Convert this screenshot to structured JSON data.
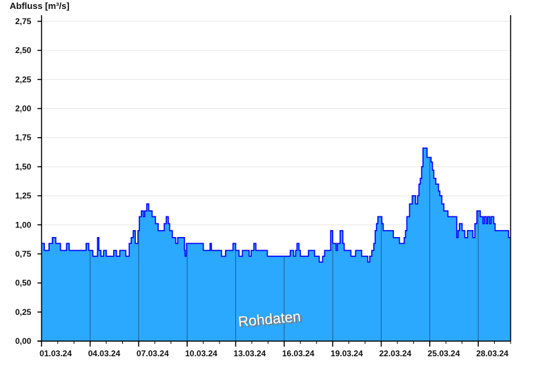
{
  "chart_data": {
    "type": "area",
    "ylabel": "Abfluss [m³/s]",
    "xlabel": "",
    "ylim": [
      0,
      2.75
    ],
    "xlim": [
      "2024-03-01T00:00",
      "2024-03-30T00:00"
    ],
    "yticks": [
      "0,00",
      "0,25",
      "0,50",
      "0,75",
      "1,00",
      "1,25",
      "1,50",
      "1,75",
      "2,00",
      "2,25",
      "2,50",
      "2,75"
    ],
    "xticks": [
      {
        "date": "2024-03-01",
        "label": "01.03.24"
      },
      {
        "date": "2024-03-04",
        "label": "04.03.24"
      },
      {
        "date": "2024-03-07",
        "label": "07.03.24"
      },
      {
        "date": "2024-03-10",
        "label": "10.03.24"
      },
      {
        "date": "2024-03-13",
        "label": "13.03.24"
      },
      {
        "date": "2024-03-16",
        "label": "16.03.24"
      },
      {
        "date": "2024-03-19",
        "label": "19.03.24"
      },
      {
        "date": "2024-03-22",
        "label": "22.03.24"
      },
      {
        "date": "2024-03-25",
        "label": "25.03.24"
      },
      {
        "date": "2024-03-28",
        "label": "28.03.24"
      }
    ],
    "grid": true,
    "watermark": "Rohdaten",
    "colors": {
      "fill": "#2ba8ff",
      "line": "#0000ff",
      "grid": "#e6e6e6",
      "day_lines": "#1f5c8a"
    },
    "series": [
      {
        "step": true,
        "points": [
          [
            "2024-03-01T00:00",
            0.84
          ],
          [
            "2024-03-01T04:00",
            0.78
          ],
          [
            "2024-03-01T11:00",
            0.84
          ],
          [
            "2024-03-01T16:00",
            0.89
          ],
          [
            "2024-03-01T21:00",
            0.84
          ],
          [
            "2024-03-02T04:00",
            0.78
          ],
          [
            "2024-03-02T13:00",
            0.84
          ],
          [
            "2024-03-02T17:00",
            0.78
          ],
          [
            "2024-03-03T18:00",
            0.84
          ],
          [
            "2024-03-03T22:00",
            0.78
          ],
          [
            "2024-03-04T04:00",
            0.73
          ],
          [
            "2024-03-04T11:00",
            0.89
          ],
          [
            "2024-03-04T13:00",
            0.78
          ],
          [
            "2024-03-04T16:00",
            0.73
          ],
          [
            "2024-03-04T20:00",
            0.78
          ],
          [
            "2024-03-05T00:00",
            0.73
          ],
          [
            "2024-03-05T11:00",
            0.78
          ],
          [
            "2024-03-05T15:00",
            0.73
          ],
          [
            "2024-03-05T20:00",
            0.78
          ],
          [
            "2024-03-06T05:00",
            0.73
          ],
          [
            "2024-03-06T10:00",
            0.84
          ],
          [
            "2024-03-06T13:00",
            0.89
          ],
          [
            "2024-03-06T16:00",
            0.95
          ],
          [
            "2024-03-06T19:00",
            0.84
          ],
          [
            "2024-03-06T23:00",
            0.95
          ],
          [
            "2024-03-07T01:00",
            1.07
          ],
          [
            "2024-03-07T04:00",
            1.12
          ],
          [
            "2024-03-07T07:00",
            1.07
          ],
          [
            "2024-03-07T09:00",
            1.12
          ],
          [
            "2024-03-07T12:00",
            1.18
          ],
          [
            "2024-03-07T15:00",
            1.12
          ],
          [
            "2024-03-07T20:00",
            1.07
          ],
          [
            "2024-03-08T01:00",
            1.01
          ],
          [
            "2024-03-08T05:00",
            0.95
          ],
          [
            "2024-03-08T14:00",
            1.01
          ],
          [
            "2024-03-08T17:00",
            1.07
          ],
          [
            "2024-03-08T20:00",
            1.01
          ],
          [
            "2024-03-08T22:00",
            0.95
          ],
          [
            "2024-03-09T02:00",
            0.89
          ],
          [
            "2024-03-09T07:00",
            0.84
          ],
          [
            "2024-03-09T10:00",
            0.89
          ],
          [
            "2024-03-09T20:00",
            0.78
          ],
          [
            "2024-03-09T21:00",
            0.73
          ],
          [
            "2024-03-09T23:00",
            0.84
          ],
          [
            "2024-03-11T00:00",
            0.78
          ],
          [
            "2024-03-11T10:00",
            0.84
          ],
          [
            "2024-03-11T12:00",
            0.78
          ],
          [
            "2024-03-12T03:00",
            0.73
          ],
          [
            "2024-03-12T09:00",
            0.78
          ],
          [
            "2024-03-12T20:00",
            0.84
          ],
          [
            "2024-03-13T00:00",
            0.78
          ],
          [
            "2024-03-13T05:00",
            0.73
          ],
          [
            "2024-03-13T10:00",
            0.78
          ],
          [
            "2024-03-13T20:00",
            0.73
          ],
          [
            "2024-03-13T23:00",
            0.78
          ],
          [
            "2024-03-14T03:00",
            0.84
          ],
          [
            "2024-03-14T06:00",
            0.78
          ],
          [
            "2024-03-14T23:00",
            0.73
          ],
          [
            "2024-03-16T09:00",
            0.78
          ],
          [
            "2024-03-16T14:00",
            0.73
          ],
          [
            "2024-03-16T17:00",
            0.78
          ],
          [
            "2024-03-16T19:00",
            0.84
          ],
          [
            "2024-03-16T22:00",
            0.78
          ],
          [
            "2024-03-17T00:00",
            0.73
          ],
          [
            "2024-03-17T12:00",
            0.78
          ],
          [
            "2024-03-17T21:00",
            0.73
          ],
          [
            "2024-03-18T04:00",
            0.68
          ],
          [
            "2024-03-18T09:00",
            0.73
          ],
          [
            "2024-03-18T12:00",
            0.78
          ],
          [
            "2024-03-18T21:00",
            0.95
          ],
          [
            "2024-03-19T00:00",
            0.84
          ],
          [
            "2024-03-19T05:00",
            0.78
          ],
          [
            "2024-03-19T07:00",
            0.84
          ],
          [
            "2024-03-19T11:00",
            0.95
          ],
          [
            "2024-03-19T15:00",
            0.84
          ],
          [
            "2024-03-19T17:00",
            0.78
          ],
          [
            "2024-03-20T03:00",
            0.73
          ],
          [
            "2024-03-20T10:00",
            0.78
          ],
          [
            "2024-03-20T19:00",
            0.73
          ],
          [
            "2024-03-21T04:00",
            0.68
          ],
          [
            "2024-03-21T07:00",
            0.73
          ],
          [
            "2024-03-21T10:00",
            0.78
          ],
          [
            "2024-03-21T13:00",
            0.84
          ],
          [
            "2024-03-21T15:00",
            0.95
          ],
          [
            "2024-03-21T17:00",
            1.01
          ],
          [
            "2024-03-21T19:00",
            1.07
          ],
          [
            "2024-03-22T01:00",
            1.01
          ],
          [
            "2024-03-22T03:00",
            0.95
          ],
          [
            "2024-03-22T18:00",
            0.89
          ],
          [
            "2024-03-23T03:00",
            0.84
          ],
          [
            "2024-03-23T10:00",
            0.89
          ],
          [
            "2024-03-23T12:00",
            0.95
          ],
          [
            "2024-03-23T14:00",
            1.07
          ],
          [
            "2024-03-23T18:00",
            1.18
          ],
          [
            "2024-03-23T22:00",
            1.25
          ],
          [
            "2024-03-24T03:00",
            1.18
          ],
          [
            "2024-03-24T06:00",
            1.25
          ],
          [
            "2024-03-24T08:00",
            1.35
          ],
          [
            "2024-03-24T10:00",
            1.4
          ],
          [
            "2024-03-24T12:00",
            1.5
          ],
          [
            "2024-03-24T14:00",
            1.66
          ],
          [
            "2024-03-24T20:00",
            1.58
          ],
          [
            "2024-03-25T02:00",
            1.54
          ],
          [
            "2024-03-25T04:00",
            1.47
          ],
          [
            "2024-03-25T06:00",
            1.4
          ],
          [
            "2024-03-25T09:00",
            1.35
          ],
          [
            "2024-03-25T13:00",
            1.29
          ],
          [
            "2024-03-25T15:00",
            1.25
          ],
          [
            "2024-03-25T18:00",
            1.18
          ],
          [
            "2024-03-25T21:00",
            1.12
          ],
          [
            "2024-03-26T03:00",
            1.07
          ],
          [
            "2024-03-26T16:00",
            0.89
          ],
          [
            "2024-03-26T18:00",
            0.95
          ],
          [
            "2024-03-26T20:00",
            1.01
          ],
          [
            "2024-03-27T00:00",
            0.95
          ],
          [
            "2024-03-27T04:00",
            0.89
          ],
          [
            "2024-03-27T08:00",
            0.95
          ],
          [
            "2024-03-27T16:00",
            0.89
          ],
          [
            "2024-03-27T19:00",
            1.01
          ],
          [
            "2024-03-27T22:00",
            1.12
          ],
          [
            "2024-03-28T03:00",
            1.07
          ],
          [
            "2024-03-28T07:00",
            1.01
          ],
          [
            "2024-03-28T09:00",
            1.07
          ],
          [
            "2024-03-28T12:00",
            1.01
          ],
          [
            "2024-03-28T14:00",
            1.07
          ],
          [
            "2024-03-28T17:00",
            1.01
          ],
          [
            "2024-03-28T19:00",
            1.07
          ],
          [
            "2024-03-28T23:00",
            1.01
          ],
          [
            "2024-03-29T01:00",
            0.95
          ],
          [
            "2024-03-29T21:00",
            0.89
          ]
        ]
      }
    ]
  }
}
